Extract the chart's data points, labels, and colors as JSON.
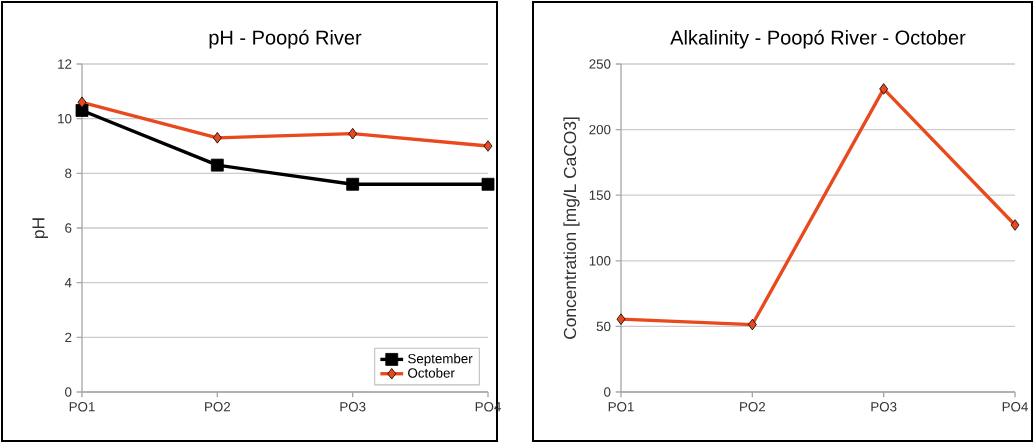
{
  "chart_data": [
    {
      "type": "line",
      "title": "pH - Poopó River",
      "ylabel": "pH",
      "categories": [
        "PO1",
        "PO2",
        "PO3",
        "PO4"
      ],
      "series": [
        {
          "name": "September",
          "color": "#000000",
          "marker": "square",
          "values": [
            10.3,
            8.3,
            7.6,
            7.6
          ]
        },
        {
          "name": "October",
          "color": "#e8491d",
          "marker": "diamond",
          "values": [
            10.6,
            9.3,
            9.45,
            9.0
          ]
        }
      ],
      "ylim": [
        0,
        12
      ],
      "yticks": [
        0,
        2,
        4,
        6,
        8,
        10,
        12
      ],
      "grid": "y",
      "legend": "bottom right"
    },
    {
      "type": "line",
      "title": "Alkalinity - Poopó River - October",
      "ylabel": "Concentration [mg/L  CaCO3]",
      "categories": [
        "PO1",
        "PO2",
        "PO3",
        "PO4"
      ],
      "values": [
        55.5,
        51.4,
        231,
        127.3
      ],
      "color": "#e8491d",
      "marker": "diamond",
      "ylim": [
        0,
        250
      ],
      "yticks": [
        0,
        50,
        100,
        150,
        200,
        250
      ],
      "grid": "y"
    }
  ]
}
